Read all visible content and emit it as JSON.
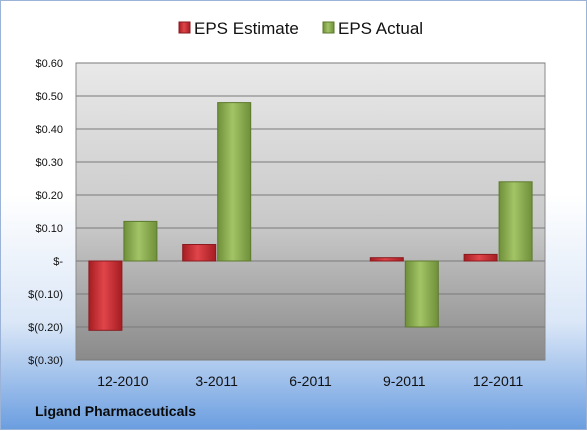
{
  "chart_data": {
    "type": "bar",
    "categories": [
      "12-2010",
      "3-2011",
      "6-2011",
      "9-2011",
      "12-2011"
    ],
    "series": [
      {
        "name": "EPS Estimate",
        "values": [
          -0.21,
          0.05,
          null,
          0.01,
          0.02
        ],
        "color": "#c0282d"
      },
      {
        "name": "EPS Actual",
        "values": [
          0.12,
          0.48,
          null,
          -0.2,
          0.24
        ],
        "color": "#8cad52"
      }
    ],
    "ylim": [
      -0.3,
      0.6
    ],
    "yticks": [
      -0.3,
      -0.2,
      -0.1,
      0,
      0.1,
      0.2,
      0.3,
      0.4,
      0.5,
      0.6
    ],
    "ytick_labels": [
      "$(0.30)",
      "$(0.20)",
      "$(0.10)",
      "$-",
      "$0.10",
      "$0.20",
      "$0.30",
      "$0.40",
      "$0.50",
      "$0.60"
    ],
    "grid": true,
    "legend_position": "top"
  },
  "company_name": "Ligand Pharmaceuticals"
}
